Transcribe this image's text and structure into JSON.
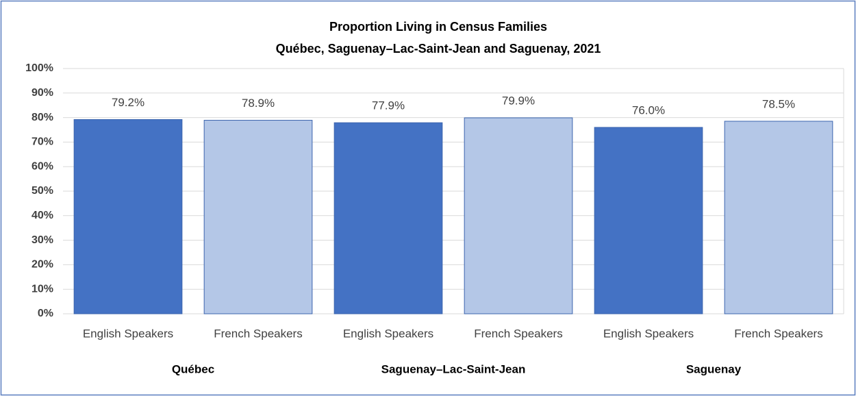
{
  "chart_data": {
    "type": "bar",
    "title": "Proportion Living in Census Families",
    "subtitle": "Québec, Saguenay–Lac-Saint-Jean  and Saguenay,  2021",
    "categories": [
      "English Speakers",
      "French Speakers",
      "English Speakers",
      "French Speakers",
      "English Speakers",
      "French Speakers"
    ],
    "groups": [
      "Québec",
      "Saguenay–Lac-Saint-Jean",
      "Saguenay"
    ],
    "values": [
      79.2,
      78.9,
      77.9,
      79.9,
      76.0,
      78.5
    ],
    "value_labels": [
      "79.2%",
      "78.9%",
      "77.9%",
      "79.9%",
      "76.0%",
      "78.5%"
    ],
    "colors": [
      "#4472c4",
      "#b4c7e7",
      "#4472c4",
      "#b4c7e7",
      "#4472c4",
      "#b4c7e7"
    ],
    "ylim": [
      0,
      100
    ],
    "yticks": [
      {
        "value": 0,
        "label": "0%"
      },
      {
        "value": 10,
        "label": "10%"
      },
      {
        "value": 20,
        "label": "20%"
      },
      {
        "value": 30,
        "label": "30%"
      },
      {
        "value": 40,
        "label": "40%"
      },
      {
        "value": 50,
        "label": "50%"
      },
      {
        "value": 60,
        "label": "60%"
      },
      {
        "value": 70,
        "label": "70%"
      },
      {
        "value": 80,
        "label": "80%"
      },
      {
        "value": 90,
        "label": "90%"
      },
      {
        "value": 100,
        "label": "100%"
      }
    ],
    "grid": true
  }
}
